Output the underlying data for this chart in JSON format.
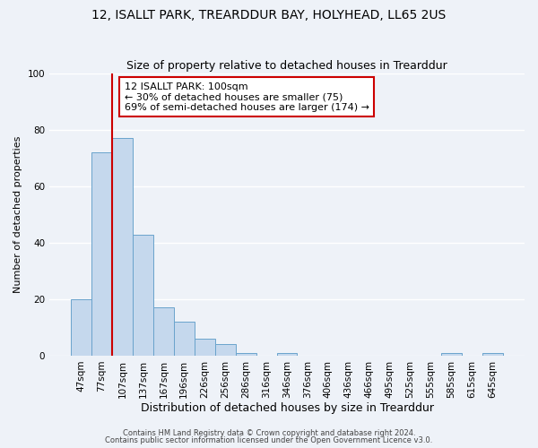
{
  "title": "12, ISALLT PARK, TREARDDUR BAY, HOLYHEAD, LL65 2US",
  "subtitle": "Size of property relative to detached houses in Trearddur",
  "xlabel": "Distribution of detached houses by size in Trearddur",
  "ylabel": "Number of detached properties",
  "bar_labels": [
    "47sqm",
    "77sqm",
    "107sqm",
    "137sqm",
    "167sqm",
    "196sqm",
    "226sqm",
    "256sqm",
    "286sqm",
    "316sqm",
    "346sqm",
    "376sqm",
    "406sqm",
    "436sqm",
    "466sqm",
    "495sqm",
    "525sqm",
    "555sqm",
    "585sqm",
    "615sqm",
    "645sqm"
  ],
  "bar_values": [
    20,
    72,
    77,
    43,
    17,
    12,
    6,
    4,
    1,
    0,
    1,
    0,
    0,
    0,
    0,
    0,
    0,
    0,
    1,
    0,
    1
  ],
  "bar_color": "#c5d8ed",
  "bar_edge_color": "#6aa3cc",
  "vline_color": "#cc0000",
  "ylim": [
    0,
    100
  ],
  "annotation_box_text": "12 ISALLT PARK: 100sqm\n← 30% of detached houses are smaller (75)\n69% of semi-detached houses are larger (174) →",
  "annotation_box_color": "#cc0000",
  "footer1": "Contains HM Land Registry data © Crown copyright and database right 2024.",
  "footer2": "Contains public sector information licensed under the Open Government Licence v3.0.",
  "bg_color": "#eef2f8",
  "grid_color": "#ffffff",
  "title_fontsize": 10,
  "subtitle_fontsize": 9,
  "xlabel_fontsize": 9,
  "ylabel_fontsize": 8,
  "tick_fontsize": 7.5,
  "footer_fontsize": 6,
  "annot_fontsize": 8
}
